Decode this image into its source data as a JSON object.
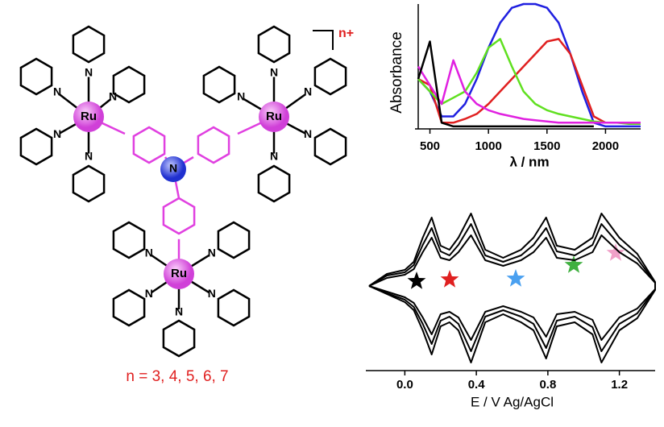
{
  "chart_data": [
    {
      "type": "line",
      "ylabel": "Absorbance",
      "xlabel": "λ / nm",
      "x": [
        400,
        500,
        600,
        700,
        800,
        900,
        1000,
        1100,
        1200,
        1300,
        1400,
        1500,
        1600,
        1700,
        1800,
        1900,
        2000,
        2100,
        2200,
        2300
      ],
      "xlim": [
        400,
        2300
      ],
      "xticks": [
        500,
        1000,
        1500,
        2000
      ],
      "ylim": [
        0,
        1
      ],
      "series": [
        {
          "color": "#2020e0",
          "values": [
            0.4,
            0.3,
            0.1,
            0.1,
            0.2,
            0.4,
            0.65,
            0.85,
            0.97,
            1.0,
            1.0,
            0.97,
            0.85,
            0.6,
            0.3,
            0.05,
            0.02,
            0.02,
            0.02,
            0.02
          ]
        },
        {
          "color": "#e02020",
          "values": [
            0.4,
            0.35,
            0.05,
            0.05,
            0.08,
            0.12,
            0.2,
            0.3,
            0.4,
            0.5,
            0.6,
            0.7,
            0.72,
            0.6,
            0.35,
            0.1,
            0.05,
            0.05,
            0.05,
            0.05
          ]
        },
        {
          "color": "#60e020",
          "values": [
            0.4,
            0.3,
            0.2,
            0.25,
            0.3,
            0.45,
            0.65,
            0.72,
            0.5,
            0.3,
            0.2,
            0.15,
            0.12,
            0.1,
            0.08,
            0.06,
            0.05,
            0.05,
            0.04,
            0.04
          ]
        },
        {
          "color": "#e020e0",
          "values": [
            0.5,
            0.35,
            0.2,
            0.55,
            0.3,
            0.2,
            0.15,
            0.12,
            0.1,
            0.08,
            0.07,
            0.06,
            0.05,
            0.05,
            0.05,
            0.05,
            0.05,
            0.05,
            0.05,
            0.05
          ]
        },
        {
          "color": "#000000",
          "values": [
            0.4,
            0.7,
            0.05,
            0.02,
            0.02,
            0.02,
            0.02,
            0.02,
            0.02,
            0.02,
            0.02,
            0.02,
            0.02,
            0.02,
            0.02,
            0.02,
            null,
            null,
            null,
            null
          ]
        }
      ]
    },
    {
      "type": "line",
      "xlabel": "E / V Ag/AgCl",
      "x": [
        -0.2,
        -0.1,
        0,
        0.05,
        0.1,
        0.15,
        0.2,
        0.25,
        0.3,
        0.37,
        0.45,
        0.55,
        0.65,
        0.72,
        0.79,
        0.85,
        0.95,
        1.05,
        1.1,
        1.2,
        1.3,
        1.4,
        1.4,
        1.3,
        1.2,
        1.1,
        1.05,
        0.95,
        0.85,
        0.79,
        0.72,
        0.65,
        0.55,
        0.45,
        0.37,
        0.3,
        0.25,
        0.2,
        0.15,
        0.1,
        0.05,
        0,
        -0.1,
        -0.2
      ],
      "xlim": [
        -0.2,
        1.4
      ],
      "xticks": [
        {
          "value": 0,
          "label": "0.0"
        },
        0.4,
        0.8,
        1.2
      ],
      "ylim": [
        -1.1,
        1.1
      ],
      "series": [
        {
          "color": "#000000",
          "values": [
            0,
            0.15,
            0.2,
            0.3,
            0.6,
            0.85,
            0.5,
            0.45,
            0.6,
            0.9,
            0.45,
            0.35,
            0.45,
            0.6,
            0.85,
            0.5,
            0.45,
            0.6,
            0.9,
            0.6,
            0.4,
            0.05,
            -0.05,
            -0.4,
            -0.55,
            -0.95,
            -0.6,
            -0.45,
            -0.5,
            -0.9,
            -0.55,
            -0.45,
            -0.35,
            -0.45,
            -0.95,
            -0.55,
            -0.45,
            -0.5,
            -0.85,
            -0.55,
            -0.3,
            -0.2,
            -0.1,
            0
          ]
        },
        {
          "color": "#000000",
          "values": [
            0,
            0.13,
            0.17,
            0.26,
            0.51,
            0.72,
            0.43,
            0.38,
            0.51,
            0.77,
            0.38,
            0.3,
            0.38,
            0.51,
            0.72,
            0.43,
            0.38,
            0.51,
            0.77,
            0.51,
            0.34,
            0.04,
            -0.04,
            -0.34,
            -0.47,
            -0.81,
            -0.51,
            -0.38,
            -0.43,
            -0.77,
            -0.47,
            -0.38,
            -0.3,
            -0.38,
            -0.81,
            -0.47,
            -0.38,
            -0.43,
            -0.72,
            -0.47,
            -0.26,
            -0.17,
            -0.09,
            0
          ]
        },
        {
          "color": "#000000",
          "values": [
            0,
            0.1,
            0.14,
            0.21,
            0.42,
            0.6,
            0.35,
            0.32,
            0.42,
            0.63,
            0.32,
            0.25,
            0.32,
            0.42,
            0.6,
            0.35,
            0.32,
            0.42,
            0.63,
            0.42,
            0.28,
            0.04,
            -0.04,
            -0.28,
            -0.39,
            -0.67,
            -0.42,
            -0.32,
            -0.35,
            -0.63,
            -0.39,
            -0.32,
            -0.25,
            -0.32,
            -0.67,
            -0.39,
            -0.32,
            -0.35,
            -0.6,
            -0.39,
            -0.21,
            -0.14,
            -0.07,
            0
          ]
        }
      ]
    }
  ],
  "structure": {
    "metal": "Ru",
    "nitrogen": "N",
    "charge": "n+",
    "caption": "n = 3, 4, 5, 6, 7"
  }
}
